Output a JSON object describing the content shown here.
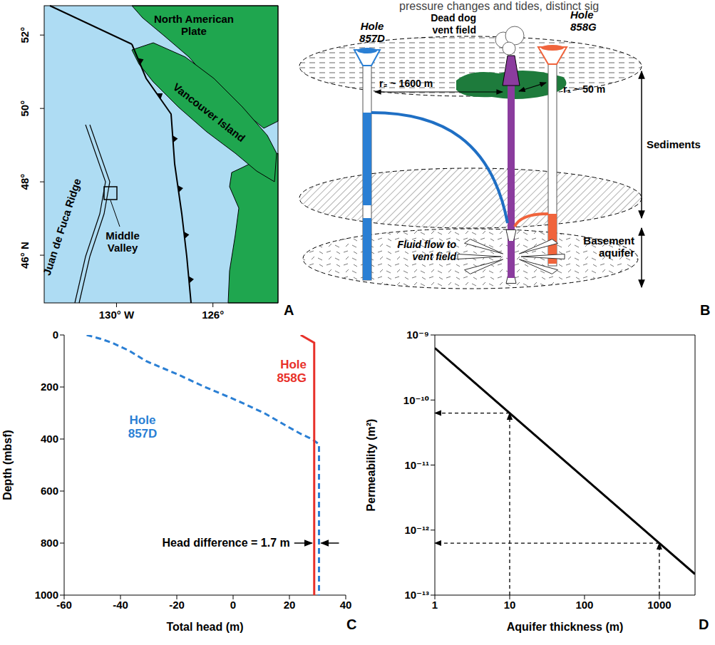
{
  "header_fragment": "pressure changes and tides, distinct sig",
  "map": {
    "panel": "A",
    "labels": {
      "plate": "North American Plate",
      "island": "Vancouver Island",
      "ridge": "Juan de Fuca Ridge",
      "valley": "Middle Valley"
    },
    "xlim": [
      133,
      123.3
    ],
    "ylim": [
      44.7,
      52.8
    ],
    "xticks": [
      {
        "value": 130,
        "label": "130° W"
      },
      {
        "value": 126,
        "label": "126°"
      }
    ],
    "yticks": [
      {
        "value": 46,
        "label": "46° N"
      },
      {
        "value": 48,
        "label": "48°"
      },
      {
        "value": 50,
        "label": "50°"
      },
      {
        "value": 52,
        "label": "52°"
      }
    ]
  },
  "diagram": {
    "panel": "B",
    "labels": {
      "hole_857D": "Hole 857D",
      "hole_858G": "Hole 858G",
      "vent": "Dead dog vent field",
      "r2": "r₂ ~ 1600 m",
      "r1": "r₁ ~ 50 m",
      "sediments": "Sediments",
      "aquifer": "Basement aquifer",
      "flow": "Fluid flow to vent field"
    }
  },
  "chart_data": [
    {
      "panel": "C",
      "type": "line",
      "xlabel": "Total head (m)",
      "ylabel": "Depth (mbsf)",
      "xlim": [
        -60,
        40
      ],
      "xticks": [
        -60,
        -40,
        -20,
        0,
        20,
        40
      ],
      "ylim": [
        0,
        1000
      ],
      "yticks": [
        0,
        200,
        400,
        600,
        800,
        1000
      ],
      "series": [
        {
          "name": "Hole 857D",
          "color": "#2a7fd4",
          "line_style": "dashed",
          "x": [
            -52,
            -47,
            -43,
            -37,
            -31,
            -20,
            -10,
            1,
            11,
            19,
            24,
            28,
            30.5,
            30.5
          ],
          "y": [
            0,
            15,
            30,
            60,
            100,
            150,
            200,
            250,
            300,
            350,
            380,
            400,
            420,
            1000
          ]
        },
        {
          "name": "Hole 858G",
          "color": "#e8312a",
          "line_style": "solid",
          "x": [
            24,
            28.8,
            28.8
          ],
          "y": [
            0,
            30,
            1000
          ]
        }
      ],
      "annotations": [
        {
          "text": "Head difference = 1.7 m",
          "y": 800,
          "x": [
            28.8,
            30.5
          ]
        }
      ]
    },
    {
      "panel": "D",
      "type": "line",
      "log": true,
      "xlabel": "Aquifer thickness (m)",
      "ylabel": "Permeability (m²)",
      "xlim": [
        1,
        3000
      ],
      "xticks": [
        1,
        10,
        100,
        1000
      ],
      "ylim": [
        1e-13,
        1e-09
      ],
      "yticks": [
        {
          "value": 1e-13,
          "label": "10⁻¹³"
        },
        {
          "value": 1e-12,
          "label": "10⁻¹²"
        },
        {
          "value": 1e-11,
          "label": "10⁻¹¹"
        },
        {
          "value": 1e-10,
          "label": "10⁻¹⁰"
        },
        {
          "value": 1e-09,
          "label": "10⁻⁹"
        }
      ],
      "series": [
        {
          "color": "#000000",
          "line_style": "solid",
          "x": [
            1,
            10,
            100,
            1000,
            3000
          ],
          "values": [
            6.3e-10,
            6.3e-11,
            6.3e-12,
            6.3e-13,
            2.1e-13
          ]
        }
      ],
      "annotations": [
        {
          "x": 10,
          "y": 6.3e-11
        },
        {
          "x": 1000,
          "y": 6.3e-13
        }
      ]
    }
  ]
}
